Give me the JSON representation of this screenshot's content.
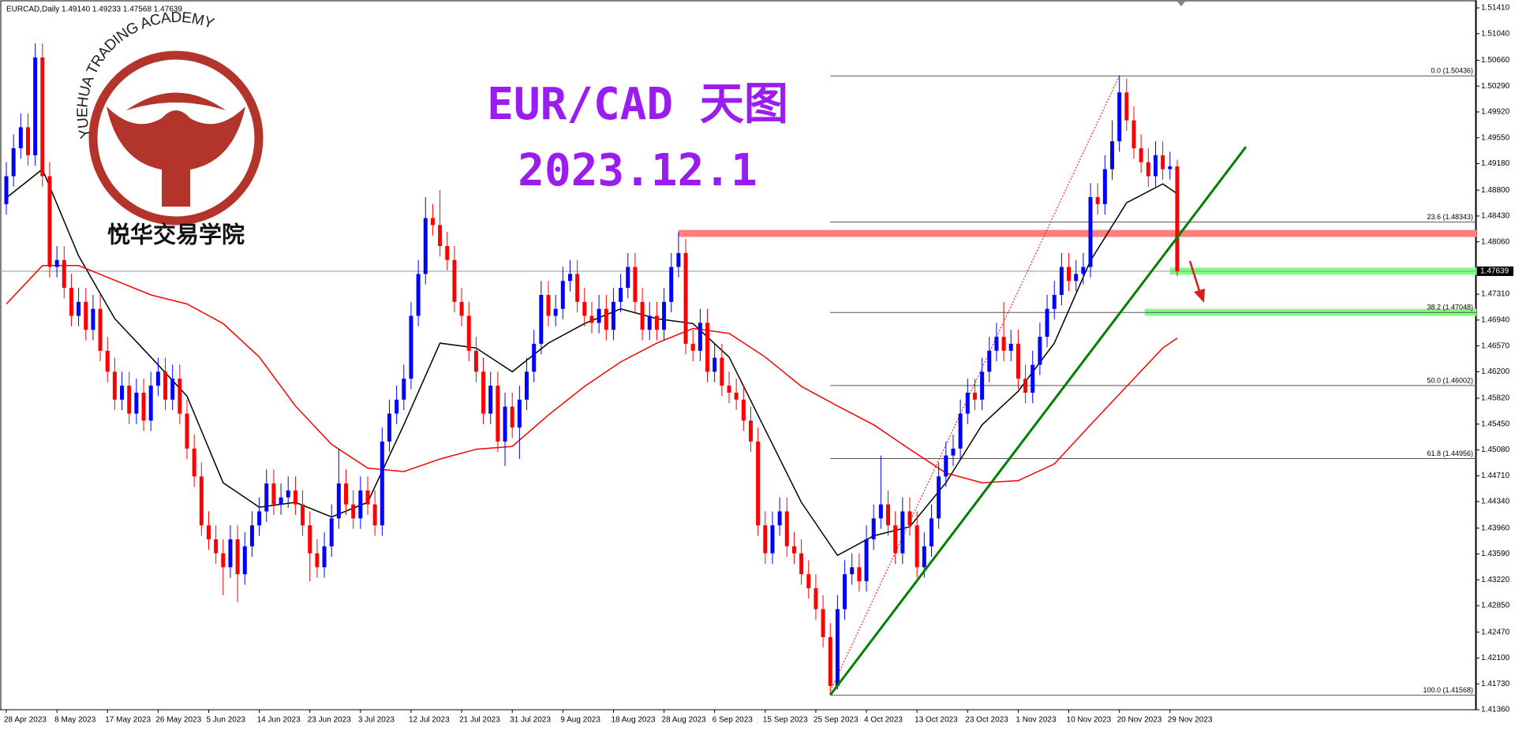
{
  "chart_data": {
    "type": "candlestick",
    "header": "EURCAD,Daily  1.49140 1.49233 1.47568 1.47639",
    "title": "EUR/CAD 天图",
    "subtitle": "2023.12.1",
    "logo_text": "YUEHUA TRADING ACADEMY",
    "logo_cn": "悦华交易学院",
    "bull_color": "#0000ff",
    "bear_color": "#ff0000",
    "ylim": [
      1.4136,
      1.5141
    ],
    "yticks": [
      {
        "value": 1.5141,
        "label": "1.51410"
      },
      {
        "value": 1.5104,
        "label": "1.51040"
      },
      {
        "value": 1.5066,
        "label": "1.50660"
      },
      {
        "value": 1.5029,
        "label": "1.50290"
      },
      {
        "value": 1.4992,
        "label": "1.49920"
      },
      {
        "value": 1.4955,
        "label": "1.49550"
      },
      {
        "value": 1.4918,
        "label": "1.49180"
      },
      {
        "value": 1.488,
        "label": "1.48800"
      },
      {
        "value": 1.4843,
        "label": "1.48430"
      },
      {
        "value": 1.4806,
        "label": "1.48060"
      },
      {
        "value": 1.4731,
        "label": "1.47310"
      },
      {
        "value": 1.4694,
        "label": "1.46940"
      },
      {
        "value": 1.4657,
        "label": "1.46570"
      },
      {
        "value": 1.462,
        "label": "1.46200"
      },
      {
        "value": 1.4582,
        "label": "1.45820"
      },
      {
        "value": 1.4545,
        "label": "1.45450"
      },
      {
        "value": 1.4508,
        "label": "1.45080"
      },
      {
        "value": 1.4471,
        "label": "1.44710"
      },
      {
        "value": 1.4434,
        "label": "1.44340"
      },
      {
        "value": 1.4396,
        "label": "1.43960"
      },
      {
        "value": 1.4359,
        "label": "1.43590"
      },
      {
        "value": 1.4322,
        "label": "1.43220"
      },
      {
        "value": 1.4285,
        "label": "1.42850"
      },
      {
        "value": 1.4247,
        "label": "1.42470"
      },
      {
        "value": 1.421,
        "label": "1.42100"
      },
      {
        "value": 1.4173,
        "label": "1.41730"
      },
      {
        "value": 1.4136,
        "label": "1.41360"
      }
    ],
    "last_price": {
      "value": 1.47639,
      "label": "1.47639"
    },
    "dates": [
      "28 Apr 2023",
      "8 May 2023",
      "17 May 2023",
      "26 May 2023",
      "5 Jun 2023",
      "14 Jun 2023",
      "23 Jun 2023",
      "3 Jul 2023",
      "12 Jul 2023",
      "21 Jul 2023",
      "31 Jul 2023",
      "9 Aug 2023",
      "18 Aug 2023",
      "28 Aug 2023",
      "6 Sep 2023",
      "15 Sep 2023",
      "25 Sep 2023",
      "4 Oct 2023",
      "13 Oct 2023",
      "23 Oct 2023",
      "1 Nov 2023",
      "10 Nov 2023",
      "20 Nov 2023",
      "29 Nov 2023"
    ],
    "candles": [
      [
        1.486,
        1.492,
        1.4845,
        1.49
      ],
      [
        1.49,
        1.496,
        1.4885,
        1.494
      ],
      [
        1.494,
        1.499,
        1.4925,
        1.497
      ],
      [
        1.497,
        1.499,
        1.4915,
        1.493
      ],
      [
        1.493,
        1.509,
        1.4915,
        1.507
      ],
      [
        1.507,
        1.509,
        1.4885,
        1.49
      ],
      [
        1.49,
        1.492,
        1.4755,
        1.477
      ],
      [
        1.477,
        1.48,
        1.4755,
        1.478
      ],
      [
        1.478,
        1.48,
        1.4725,
        1.474
      ],
      [
        1.474,
        1.476,
        1.4685,
        1.47
      ],
      [
        1.47,
        1.474,
        1.4685,
        1.472
      ],
      [
        1.472,
        1.474,
        1.4665,
        1.468
      ],
      [
        1.468,
        1.473,
        1.4665,
        1.471
      ],
      [
        1.471,
        1.473,
        1.4635,
        1.465
      ],
      [
        1.465,
        1.467,
        1.4605,
        1.462
      ],
      [
        1.462,
        1.464,
        1.4565,
        1.458
      ],
      [
        1.458,
        1.462,
        1.4565,
        1.46
      ],
      [
        1.46,
        1.462,
        1.4545,
        1.456
      ],
      [
        1.456,
        1.461,
        1.4545,
        1.459
      ],
      [
        1.459,
        1.461,
        1.4535,
        1.455
      ],
      [
        1.455,
        1.462,
        1.4535,
        1.46
      ],
      [
        1.46,
        1.464,
        1.4585,
        1.462
      ],
      [
        1.462,
        1.464,
        1.4565,
        1.458
      ],
      [
        1.458,
        1.463,
        1.4565,
        1.461
      ],
      [
        1.461,
        1.463,
        1.4545,
        1.456
      ],
      [
        1.456,
        1.458,
        1.4495,
        1.451
      ],
      [
        1.451,
        1.453,
        1.4455,
        1.447
      ],
      [
        1.447,
        1.449,
        1.4385,
        1.44
      ],
      [
        1.44,
        1.442,
        1.4365,
        1.438
      ],
      [
        1.438,
        1.44,
        1.4345,
        1.436
      ],
      [
        1.436,
        1.438,
        1.43,
        1.434
      ],
      [
        1.434,
        1.44,
        1.4325,
        1.438
      ],
      [
        1.438,
        1.44,
        1.429,
        1.433
      ],
      [
        1.433,
        1.439,
        1.4315,
        1.437
      ],
      [
        1.437,
        1.442,
        1.4355,
        1.44
      ],
      [
        1.44,
        1.444,
        1.4385,
        1.442
      ],
      [
        1.442,
        1.448,
        1.4405,
        1.446
      ],
      [
        1.446,
        1.448,
        1.4415,
        1.443
      ],
      [
        1.443,
        1.446,
        1.4415,
        1.444
      ],
      [
        1.444,
        1.447,
        1.4425,
        1.445
      ],
      [
        1.445,
        1.447,
        1.4415,
        1.443
      ],
      [
        1.443,
        1.445,
        1.4385,
        1.44
      ],
      [
        1.44,
        1.442,
        1.432,
        1.436
      ],
      [
        1.436,
        1.438,
        1.4325,
        1.434
      ],
      [
        1.434,
        1.439,
        1.4325,
        1.437
      ],
      [
        1.437,
        1.443,
        1.4355,
        1.441
      ],
      [
        1.441,
        1.451,
        1.4395,
        1.446
      ],
      [
        1.446,
        1.448,
        1.4415,
        1.443
      ],
      [
        1.443,
        1.445,
        1.4395,
        1.441
      ],
      [
        1.441,
        1.447,
        1.4395,
        1.445
      ],
      [
        1.445,
        1.447,
        1.4415,
        1.443
      ],
      [
        1.443,
        1.445,
        1.4385,
        1.44
      ],
      [
        1.44,
        1.454,
        1.4385,
        1.452
      ],
      [
        1.452,
        1.458,
        1.4505,
        1.456
      ],
      [
        1.456,
        1.46,
        1.4545,
        1.458
      ],
      [
        1.458,
        1.463,
        1.4565,
        1.461
      ],
      [
        1.461,
        1.472,
        1.4595,
        1.47
      ],
      [
        1.47,
        1.478,
        1.4685,
        1.476
      ],
      [
        1.476,
        1.487,
        1.4745,
        1.484
      ],
      [
        1.484,
        1.486,
        1.4815,
        1.483
      ],
      [
        1.483,
        1.488,
        1.4785,
        1.48
      ],
      [
        1.48,
        1.482,
        1.4765,
        1.478
      ],
      [
        1.478,
        1.48,
        1.4705,
        1.472
      ],
      [
        1.472,
        1.474,
        1.4685,
        1.47
      ],
      [
        1.47,
        1.472,
        1.4635,
        1.465
      ],
      [
        1.465,
        1.467,
        1.4605,
        1.462
      ],
      [
        1.462,
        1.464,
        1.4545,
        1.456
      ],
      [
        1.456,
        1.462,
        1.4545,
        1.46
      ],
      [
        1.46,
        1.462,
        1.4505,
        1.452
      ],
      [
        1.452,
        1.459,
        1.4485,
        1.457
      ],
      [
        1.457,
        1.459,
        1.4525,
        1.454
      ],
      [
        1.454,
        1.46,
        1.4495,
        1.458
      ],
      [
        1.458,
        1.464,
        1.4565,
        1.462
      ],
      [
        1.462,
        1.468,
        1.4605,
        1.466
      ],
      [
        1.466,
        1.475,
        1.4645,
        1.473
      ],
      [
        1.473,
        1.475,
        1.4685,
        1.47
      ],
      [
        1.47,
        1.473,
        1.4685,
        1.471
      ],
      [
        1.471,
        1.477,
        1.4695,
        1.475
      ],
      [
        1.475,
        1.478,
        1.4735,
        1.476
      ],
      [
        1.476,
        1.478,
        1.4705,
        1.472
      ],
      [
        1.472,
        1.474,
        1.4685,
        1.47
      ],
      [
        1.47,
        1.472,
        1.4675,
        1.469
      ],
      [
        1.469,
        1.473,
        1.4675,
        1.471
      ],
      [
        1.471,
        1.473,
        1.4665,
        1.468
      ],
      [
        1.468,
        1.474,
        1.4665,
        1.472
      ],
      [
        1.472,
        1.476,
        1.4705,
        1.474
      ],
      [
        1.474,
        1.479,
        1.4725,
        1.477
      ],
      [
        1.477,
        1.479,
        1.4705,
        1.472
      ],
      [
        1.472,
        1.474,
        1.4665,
        1.468
      ],
      [
        1.468,
        1.472,
        1.4665,
        1.47
      ],
      [
        1.47,
        1.472,
        1.4665,
        1.468
      ],
      [
        1.468,
        1.474,
        1.4665,
        1.472
      ],
      [
        1.472,
        1.479,
        1.4705,
        1.477
      ],
      [
        1.477,
        1.482,
        1.4755,
        1.479
      ],
      [
        1.479,
        1.481,
        1.4645,
        1.466
      ],
      [
        1.466,
        1.468,
        1.4635,
        1.465
      ],
      [
        1.465,
        1.471,
        1.4635,
        1.469
      ],
      [
        1.469,
        1.471,
        1.4605,
        1.462
      ],
      [
        1.462,
        1.466,
        1.4605,
        1.464
      ],
      [
        1.464,
        1.466,
        1.4585,
        1.46
      ],
      [
        1.46,
        1.462,
        1.4575,
        1.459
      ],
      [
        1.459,
        1.461,
        1.4565,
        1.458
      ],
      [
        1.458,
        1.46,
        1.4535,
        1.455
      ],
      [
        1.455,
        1.457,
        1.4505,
        1.452
      ],
      [
        1.452,
        1.454,
        1.4385,
        1.44
      ],
      [
        1.44,
        1.442,
        1.4345,
        1.436
      ],
      [
        1.436,
        1.442,
        1.4345,
        1.44
      ],
      [
        1.44,
        1.444,
        1.4385,
        1.442
      ],
      [
        1.442,
        1.444,
        1.4355,
        1.437
      ],
      [
        1.437,
        1.439,
        1.4345,
        1.436
      ],
      [
        1.436,
        1.438,
        1.4315,
        1.433
      ],
      [
        1.433,
        1.435,
        1.4295,
        1.431
      ],
      [
        1.431,
        1.433,
        1.4265,
        1.428
      ],
      [
        1.428,
        1.43,
        1.4225,
        1.424
      ],
      [
        1.424,
        1.426,
        1.4157,
        1.417
      ],
      [
        1.417,
        1.43,
        1.4165,
        1.428
      ],
      [
        1.428,
        1.435,
        1.4265,
        1.433
      ],
      [
        1.433,
        1.436,
        1.4315,
        1.434
      ],
      [
        1.434,
        1.436,
        1.4305,
        1.432
      ],
      [
        1.432,
        1.44,
        1.4305,
        1.438
      ],
      [
        1.438,
        1.443,
        1.4365,
        1.441
      ],
      [
        1.441,
        1.45,
        1.4395,
        1.443
      ],
      [
        1.443,
        1.445,
        1.4385,
        1.44
      ],
      [
        1.44,
        1.442,
        1.4345,
        1.436
      ],
      [
        1.436,
        1.444,
        1.4345,
        1.442
      ],
      [
        1.442,
        1.444,
        1.4385,
        1.44
      ],
      [
        1.44,
        1.442,
        1.4325,
        1.434
      ],
      [
        1.434,
        1.439,
        1.4325,
        1.437
      ],
      [
        1.437,
        1.443,
        1.4355,
        1.441
      ],
      [
        1.441,
        1.449,
        1.4395,
        1.447
      ],
      [
        1.447,
        1.452,
        1.4455,
        1.45
      ],
      [
        1.45,
        1.453,
        1.4485,
        1.451
      ],
      [
        1.451,
        1.458,
        1.4495,
        1.456
      ],
      [
        1.456,
        1.461,
        1.4545,
        1.459
      ],
      [
        1.459,
        1.461,
        1.4565,
        1.458
      ],
      [
        1.458,
        1.464,
        1.4565,
        1.462
      ],
      [
        1.462,
        1.467,
        1.4605,
        1.465
      ],
      [
        1.465,
        1.469,
        1.4635,
        1.467
      ],
      [
        1.467,
        1.472,
        1.4635,
        1.465
      ],
      [
        1.465,
        1.468,
        1.4635,
        1.466
      ],
      [
        1.466,
        1.468,
        1.4595,
        1.461
      ],
      [
        1.461,
        1.463,
        1.4575,
        1.459
      ],
      [
        1.459,
        1.465,
        1.4575,
        1.463
      ],
      [
        1.463,
        1.469,
        1.4615,
        1.467
      ],
      [
        1.467,
        1.473,
        1.4655,
        1.471
      ],
      [
        1.471,
        1.475,
        1.4695,
        1.473
      ],
      [
        1.473,
        1.479,
        1.4715,
        1.477
      ],
      [
        1.477,
        1.479,
        1.4735,
        1.475
      ],
      [
        1.475,
        1.478,
        1.4735,
        1.476
      ],
      [
        1.476,
        1.479,
        1.4745,
        1.477
      ],
      [
        1.477,
        1.489,
        1.4755,
        1.487
      ],
      [
        1.487,
        1.489,
        1.4845,
        1.486
      ],
      [
        1.486,
        1.493,
        1.4845,
        1.491
      ],
      [
        1.491,
        1.498,
        1.4895,
        1.495
      ],
      [
        1.495,
        1.5044,
        1.4935,
        1.502
      ],
      [
        1.502,
        1.504,
        1.4965,
        1.498
      ],
      [
        1.498,
        1.5,
        1.4925,
        1.494
      ],
      [
        1.494,
        1.496,
        1.4905,
        1.492
      ],
      [
        1.492,
        1.494,
        1.4885,
        1.49
      ],
      [
        1.49,
        1.495,
        1.4885,
        1.493
      ],
      [
        1.493,
        1.495,
        1.4895,
        1.491
      ],
      [
        1.491,
        1.4935,
        1.4895,
        1.4914
      ],
      [
        1.4914,
        1.49233,
        1.47568,
        1.47639
      ]
    ],
    "ma": [
      {
        "color": "#000000",
        "x": [
          0,
          5,
          10,
          15,
          20,
          25,
          30,
          35,
          40,
          45,
          50,
          55,
          60,
          65,
          70,
          75,
          80,
          85,
          90,
          95,
          100,
          105,
          110,
          115,
          120,
          125,
          130,
          135,
          140,
          145,
          150,
          155,
          160,
          162
        ],
        "values": [
          1.4869,
          1.491,
          1.4786,
          1.4696,
          1.4641,
          1.4585,
          1.4461,
          1.4426,
          1.4433,
          1.4412,
          1.4433,
          1.4544,
          1.4661,
          1.4654,
          1.462,
          1.4661,
          1.4689,
          1.471,
          1.4696,
          1.4689,
          1.4641,
          1.4537,
          1.4433,
          1.4357,
          1.4385,
          1.4398,
          1.4461,
          1.4544,
          1.4592,
          1.4661,
          1.4779,
          1.4862,
          1.4889,
          1.4875
        ]
      },
      {
        "color": "#ff0000",
        "x": [
          0,
          5,
          10,
          15,
          20,
          25,
          30,
          35,
          40,
          45,
          50,
          55,
          60,
          65,
          70,
          75,
          80,
          85,
          90,
          95,
          100,
          105,
          110,
          115,
          120,
          125,
          130,
          135,
          140,
          145,
          150,
          155,
          160,
          162
        ],
        "values": [
          1.4717,
          1.4772,
          1.4772,
          1.4751,
          1.473,
          1.4717,
          1.4689,
          1.4641,
          1.4571,
          1.4516,
          1.4482,
          1.4477,
          1.4495,
          1.4509,
          1.4513,
          1.4558,
          1.4599,
          1.4634,
          1.4661,
          1.4682,
          1.4675,
          1.4641,
          1.4599,
          1.4571,
          1.4544,
          1.4509,
          1.4475,
          1.4461,
          1.4464,
          1.4488,
          1.4544,
          1.4599,
          1.4654,
          1.4668
        ]
      }
    ],
    "fib_levels": [
      {
        "value": 1.50436,
        "label": "0.0 (1.50436)"
      },
      {
        "value": 1.48343,
        "label": "23.6 (1.48343)"
      },
      {
        "value": 1.47048,
        "label": "38.2 (1.47048)"
      },
      {
        "value": 1.46002,
        "label": "50.0 (1.46002)"
      },
      {
        "value": 1.44956,
        "label": "61.8 (1.44956)"
      },
      {
        "value": 1.41568,
        "label": "100.0 (1.41568)"
      }
    ],
    "fib_from": 114,
    "zones": [
      {
        "price": 1.4818,
        "color": "#ff7f7f",
        "from": 93
      },
      {
        "price": 1.4764,
        "color": "#7fff7f",
        "from": 161
      },
      {
        "price": 1.4705,
        "color": "#7fff7f",
        "from": 157.5
      }
    ],
    "trendline": {
      "color": "#008000",
      "from": [
        114,
        1.4157
      ],
      "to": [
        171.5,
        1.4942
      ]
    },
    "dotline": {
      "color": "#ff0000",
      "from": [
        114,
        1.4163
      ],
      "to": [
        154,
        1.5044
      ]
    }
  }
}
